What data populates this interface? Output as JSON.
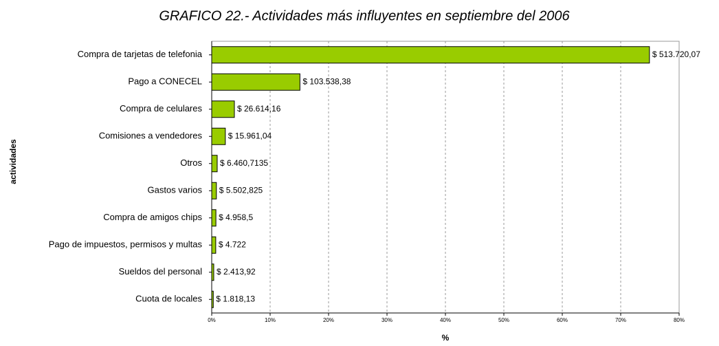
{
  "chart_data": {
    "type": "bar",
    "orientation": "horizontal",
    "title": "GRAFICO 22.-  Actividades más influyentes en septiembre del 2006",
    "y_label": "actividades",
    "x_label": "%",
    "categories": [
      "Compra de tarjetas de telefonia",
      "Pago a CONECEL",
      "Compra de celulares",
      "Comisiones a vendedores",
      "Otros",
      "Gastos varios",
      "Compra de amigos chips",
      "Pago de impuestos, permisos y multas",
      "Sueldos del personal",
      "Cuota de locales"
    ],
    "values": [
      74.92,
      15.1,
      3.88,
      2.33,
      0.94,
      0.8,
      0.72,
      0.69,
      0.35,
      0.27
    ],
    "value_labels": [
      "$ 513.720,07",
      "$ 103.538,38",
      "$ 26.614,16",
      "$ 15.961,04",
      "$ 6.460,7135",
      "$ 5.502,825",
      "$ 4.958,5",
      "$ 4.722",
      "$ 2.413,92",
      "$ 1.818,13"
    ],
    "color": "#99cc00",
    "xlim": [
      0,
      80
    ],
    "xticks": [
      {
        "value": 0,
        "label": "0%"
      },
      {
        "value": 10,
        "label": "10%"
      },
      {
        "value": 20,
        "label": "20%"
      },
      {
        "value": 30,
        "label": "30%"
      },
      {
        "value": 40,
        "label": "40%"
      },
      {
        "value": 50,
        "label": "50%"
      },
      {
        "value": 60,
        "label": "60%"
      },
      {
        "value": 70,
        "label": "70%"
      },
      {
        "value": 80,
        "label": "80%"
      }
    ],
    "grid": true
  }
}
